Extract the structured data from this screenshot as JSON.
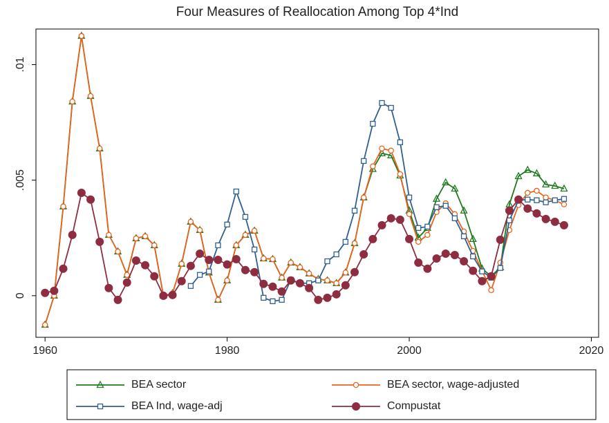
{
  "chart_data": {
    "type": "line",
    "title": "Four Measures of Reallocation Among Top 4*Ind",
    "x": [
      1960,
      1961,
      1962,
      1963,
      1964,
      1965,
      1966,
      1967,
      1968,
      1969,
      1970,
      1971,
      1972,
      1973,
      1974,
      1975,
      1976,
      1977,
      1978,
      1979,
      1980,
      1981,
      1982,
      1983,
      1984,
      1985,
      1986,
      1987,
      1988,
      1989,
      1990,
      1991,
      1992,
      1993,
      1994,
      1995,
      1996,
      1997,
      1998,
      1999,
      2000,
      2001,
      2002,
      2003,
      2004,
      2005,
      2006,
      2007,
      2008,
      2009,
      2010,
      2011,
      2012,
      2013,
      2014,
      2015,
      2016,
      2017
    ],
    "series": [
      {
        "name": "BEA sector",
        "color": "#1f7a1f",
        "marker": "triangle",
        "values": [
          -0.00126,
          0.0,
          0.00386,
          0.0084,
          0.01124,
          0.00864,
          0.00637,
          0.00263,
          0.00191,
          0.0009,
          0.00248,
          0.00257,
          0.00218,
          0.0,
          0.0001,
          0.00138,
          0.0032,
          0.00284,
          0.001,
          -0.00018,
          0.00066,
          0.00218,
          0.00263,
          0.00281,
          0.00161,
          0.00158,
          0.00078,
          0.00143,
          0.00123,
          0.00096,
          0.00072,
          0.00066,
          0.00054,
          0.001,
          0.00227,
          0.00425,
          0.00548,
          0.00616,
          0.00607,
          0.0052,
          0.00368,
          0.00251,
          0.00293,
          0.00419,
          0.0049,
          0.00463,
          0.00368,
          0.00245,
          0.00117,
          0.00084,
          0.00123,
          0.00395,
          0.00517,
          0.00544,
          0.00529,
          0.00481,
          0.00475,
          0.00463
        ]
      },
      {
        "name": "BEA sector, wage-adjusted",
        "color": "#e8641e",
        "marker": "circle-open",
        "values": [
          -0.00126,
          0.0,
          0.00386,
          0.0084,
          0.01124,
          0.00864,
          0.00637,
          0.00263,
          0.00191,
          0.0009,
          0.00248,
          0.00257,
          0.00218,
          0.0,
          0.0001,
          0.00138,
          0.0032,
          0.00284,
          0.001,
          -0.00018,
          0.00066,
          0.00218,
          0.00263,
          0.00281,
          0.00161,
          0.00158,
          0.00078,
          0.00143,
          0.00123,
          0.00096,
          0.00072,
          0.00066,
          0.00054,
          0.001,
          0.00227,
          0.00425,
          0.0056,
          0.00637,
          0.00628,
          0.00526,
          0.00353,
          0.00233,
          0.00263,
          0.00362,
          0.004,
          0.00353,
          0.00278,
          0.00194,
          0.00108,
          0.00024,
          0.00143,
          0.00284,
          0.00392,
          0.00445,
          0.00454,
          0.00425,
          0.00413,
          0.00395
        ]
      },
      {
        "name": "BEA Ind, wage-adj",
        "color": "#2f5f91",
        "marker": "square-open",
        "values": [
          null,
          null,
          null,
          null,
          null,
          null,
          null,
          null,
          null,
          null,
          null,
          null,
          null,
          null,
          null,
          null,
          0.00042,
          0.0009,
          0.00105,
          0.00218,
          0.00308,
          0.00451,
          0.00341,
          0.002,
          -9e-05,
          -0.00024,
          -0.00018,
          0.00069,
          0.00054,
          0.00054,
          0.00066,
          0.00149,
          0.00179,
          0.00233,
          0.00368,
          0.00583,
          0.00744,
          0.00834,
          0.00813,
          0.00664,
          0.00425,
          0.00293,
          0.00299,
          0.00383,
          0.00389,
          0.00335,
          0.00257,
          0.0017,
          0.00105,
          0.00078,
          0.0012,
          0.00326,
          0.00413,
          0.00416,
          0.00413,
          0.00404,
          0.00413,
          0.00419
        ]
      },
      {
        "name": "Compustat",
        "color": "#8e2c40",
        "marker": "circle-filled",
        "values": [
          0.00012,
          0.00021,
          0.00117,
          0.00263,
          0.00445,
          0.00416,
          0.00233,
          0.00033,
          -0.00018,
          0.00057,
          0.00152,
          0.00132,
          0.00084,
          0.0,
          3e-05,
          0.00063,
          0.00129,
          0.00182,
          0.00155,
          0.00155,
          0.00135,
          0.00158,
          0.00111,
          0.00102,
          0.00051,
          0.00039,
          0.00018,
          0.00066,
          0.00054,
          0.00033,
          -0.00018,
          -9e-05,
          6e-05,
          0.00045,
          0.00102,
          0.00179,
          0.00245,
          0.00305,
          0.00335,
          0.00329,
          0.00245,
          0.00143,
          0.00117,
          0.00161,
          0.00182,
          0.00176,
          0.00149,
          0.00108,
          0.00063,
          0.00084,
          0.00242,
          0.00368,
          0.00416,
          0.00377,
          0.00356,
          0.00332,
          0.0032,
          0.00305
        ]
      }
    ],
    "xlim": [
      1959,
      2020.8
    ],
    "xticks": [
      1960,
      1980,
      2000,
      2020
    ],
    "ylim": [
      -0.0018,
      0.01154
    ],
    "yticks": [
      0,
      {
        "value": 0.005,
        "label": ".005"
      },
      {
        "value": 0.01,
        "label": ".01"
      }
    ],
    "grid": false,
    "legend": "bottom"
  }
}
